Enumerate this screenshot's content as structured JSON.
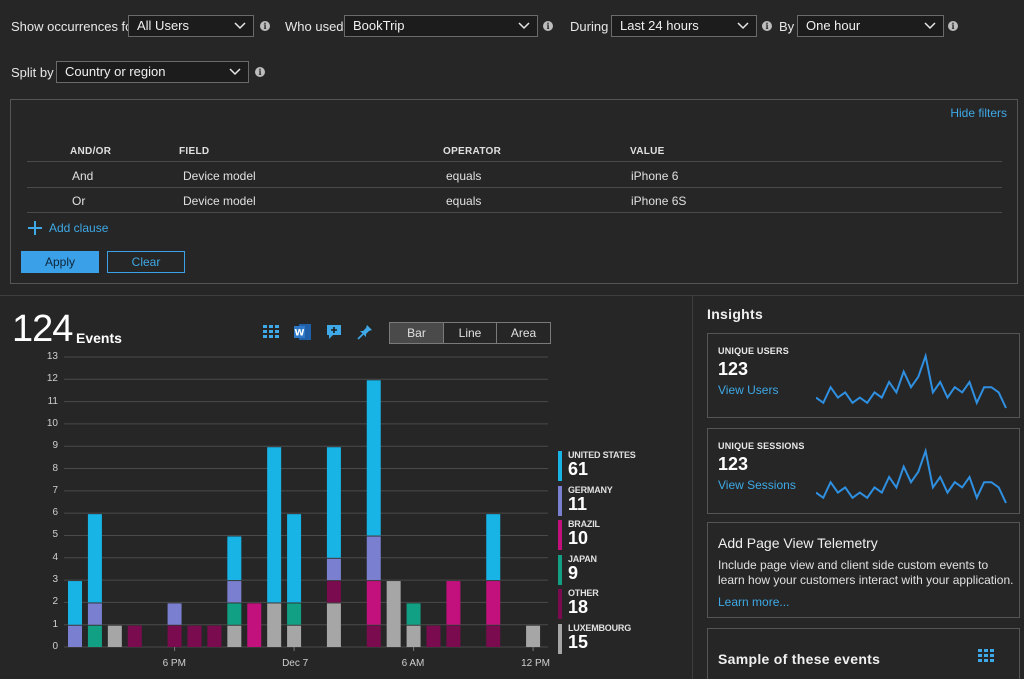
{
  "query": {
    "show_label": "Show occurrences for",
    "show_value": "All Users",
    "who_label": "Who used",
    "who_value": "BookTrip",
    "during_label": "During",
    "during_value": "Last 24 hours",
    "by_label": "By",
    "by_value": "One hour",
    "split_label": "Split by",
    "split_value": "Country or region"
  },
  "filters": {
    "hide_label": "Hide filters",
    "headers": [
      "AND/OR",
      "FIELD",
      "OPERATOR",
      "VALUE"
    ],
    "rows": [
      {
        "andor": "And",
        "field": "Device model",
        "operator": "equals",
        "value": "iPhone 6"
      },
      {
        "andor": "Or",
        "field": "Device model",
        "operator": "equals",
        "value": "iPhone 6S"
      }
    ],
    "add_clause": "Add clause",
    "apply": "Apply",
    "clear": "Clear"
  },
  "summary": {
    "count": "124",
    "unit": "Events"
  },
  "toolbar_icons": [
    "grid-icon",
    "word-icon",
    "add-comment-icon",
    "pin-icon"
  ],
  "view_toggle": {
    "options": [
      "Bar",
      "Line",
      "Area"
    ],
    "active": "Bar"
  },
  "chart_data": {
    "type": "bar",
    "stacked": true,
    "categories": [
      "1",
      "2",
      "3",
      "4",
      "5",
      "6",
      "7",
      "8",
      "9",
      "10",
      "11",
      "12",
      "13",
      "14",
      "15",
      "16",
      "17",
      "18",
      "19",
      "20",
      "21",
      "22",
      "23",
      "24"
    ],
    "x_tick_labels": [
      {
        "label": "6 PM",
        "index": 5
      },
      {
        "label": "Dec 7",
        "index": 11
      },
      {
        "label": "6 AM",
        "index": 17
      },
      {
        "label": "12 PM",
        "index": 23
      }
    ],
    "y_ticks": [
      0,
      1,
      2,
      3,
      4,
      5,
      6,
      7,
      8,
      9,
      10,
      11,
      12,
      13
    ],
    "ylim": [
      0,
      13
    ],
    "grid": true,
    "legend_position": "right",
    "series": [
      {
        "name": "LUXEMBOURG",
        "color": "#a6a6a6",
        "values": [
          0,
          0,
          1,
          0,
          0,
          0,
          0,
          0,
          1,
          0,
          2,
          1,
          0,
          2,
          0,
          0,
          3,
          1,
          0,
          0,
          0,
          0,
          0,
          1
        ]
      },
      {
        "name": "OTHER",
        "color": "#7a0b4e",
        "values": [
          0,
          0,
          0,
          1,
          0,
          1,
          1,
          1,
          0,
          0,
          0,
          0,
          0,
          1,
          0,
          1,
          0,
          0,
          1,
          1,
          0,
          1,
          0,
          0
        ]
      },
      {
        "name": "JAPAN",
        "color": "#12a085",
        "values": [
          0,
          1,
          0,
          0,
          0,
          0,
          0,
          0,
          1,
          0,
          0,
          1,
          0,
          0,
          0,
          0,
          0,
          1,
          0,
          0,
          0,
          0,
          0,
          0
        ]
      },
      {
        "name": "BRAZIL",
        "color": "#c2117c",
        "values": [
          0,
          0,
          0,
          0,
          0,
          0,
          0,
          0,
          0,
          2,
          0,
          0,
          0,
          0,
          0,
          2,
          0,
          0,
          0,
          2,
          0,
          2,
          0,
          0
        ]
      },
      {
        "name": "GERMANY",
        "color": "#7a7fd0",
        "values": [
          1,
          1,
          0,
          0,
          0,
          1,
          0,
          0,
          1,
          0,
          0,
          0,
          0,
          1,
          0,
          2,
          0,
          0,
          0,
          0,
          0,
          0,
          0,
          0
        ]
      },
      {
        "name": "UNITED STATES",
        "color": "#18b4e6",
        "values": [
          2,
          4,
          0,
          0,
          0,
          0,
          0,
          0,
          2,
          0,
          7,
          4,
          0,
          5,
          0,
          7,
          0,
          0,
          0,
          0,
          0,
          3,
          0,
          0
        ]
      }
    ]
  },
  "legend": [
    {
      "name": "UNITED STATES",
      "value": "61",
      "color": "#18b4e6"
    },
    {
      "name": "GERMANY",
      "value": "11",
      "color": "#7a7fd0"
    },
    {
      "name": "BRAZIL",
      "value": "10",
      "color": "#c2117c"
    },
    {
      "name": "JAPAN",
      "value": "9",
      "color": "#12a085"
    },
    {
      "name": "OTHER",
      "value": "18",
      "color": "#7a0b4e"
    },
    {
      "name": "LUXEMBOURG",
      "value": "15",
      "color": "#a6a6a6"
    }
  ],
  "insights": {
    "title": "Insights",
    "unique_users": {
      "label": "UNIQUE USERS",
      "value": "123",
      "link": "View Users",
      "spark": [
        2,
        1,
        4,
        2,
        3,
        1,
        2,
        1,
        3,
        2,
        5,
        3,
        7,
        4,
        6,
        10,
        3,
        5,
        2,
        4,
        3,
        5,
        1,
        4,
        4,
        3,
        0
      ]
    },
    "unique_sessions": {
      "label": "UNIQUE SESSIONS",
      "value": "123",
      "link": "View Sessions",
      "spark": [
        2,
        1,
        4,
        2,
        3,
        1,
        2,
        1,
        3,
        2,
        5,
        3,
        7,
        4,
        6,
        10,
        3,
        5,
        2,
        4,
        3,
        5,
        1,
        4,
        4,
        3,
        0
      ]
    },
    "telemetry": {
      "title": "Add Page View Telemetry",
      "body": "Include page view and client side custom events to learn how your customers interact with your application.",
      "link": "Learn more..."
    },
    "sample": {
      "title": "Sample of these events"
    }
  },
  "colors": {
    "accent": "#3ea9e6",
    "background": "#262626"
  }
}
